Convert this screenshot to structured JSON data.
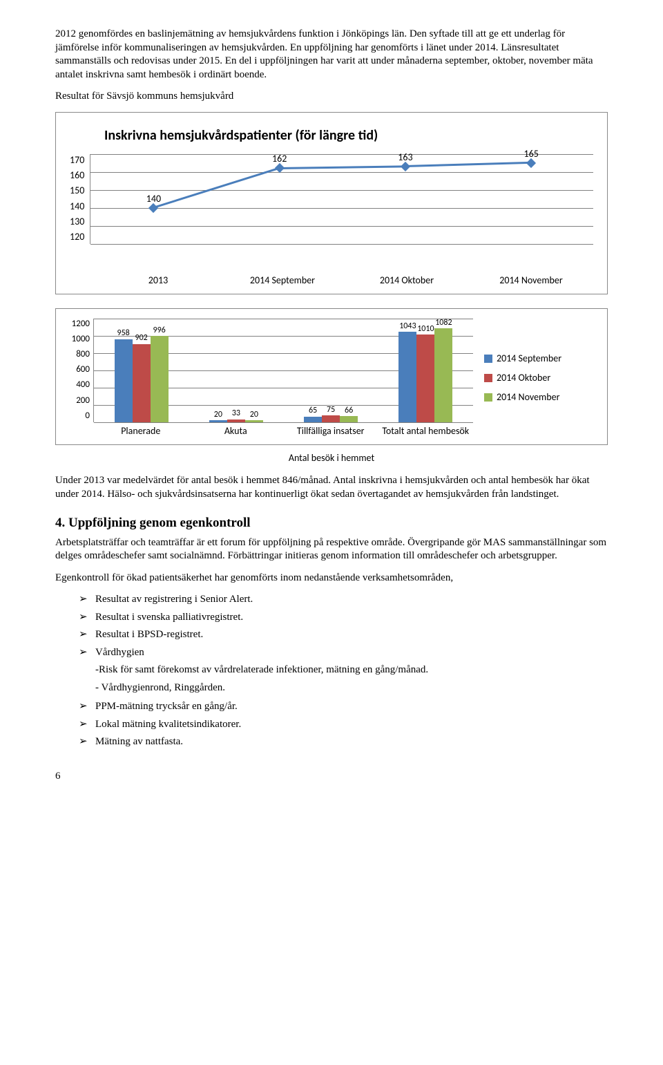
{
  "intro": {
    "p1": "2012 genomfördes en baslinjemätning av hemsjukvårdens funktion i Jönköpings län. Den syftade till att ge ett underlag för jämförelse inför kommunaliseringen av hemsjukvården. En uppföljning har genomförts i länet under 2014. Länsresultatet sammanställs och redovisas under 2015. En del i uppföljningen har varit att under månaderna september, oktober, november mäta antalet inskrivna samt hembesök i ordinärt boende.",
    "p2": "Resultat för Sävsjö kommuns hemsjukvård"
  },
  "line_chart": {
    "type": "line",
    "title": "Inskrivna hemsjukvårdspatienter   (för längre tid)",
    "categories": [
      "2013",
      "2014 September",
      "2014 Oktober",
      "2014 November"
    ],
    "values": [
      140,
      162,
      163,
      165
    ],
    "ylim": [
      120,
      170
    ],
    "ytick_step": 10,
    "line_color": "#4a7ebb",
    "grid_color": "#808080",
    "label_fontsize": 14,
    "title_fontsize": 20
  },
  "bar_chart": {
    "type": "bar",
    "categories": [
      "Planerade",
      "Akuta",
      "Tillfälliga insatser",
      "Totalt antal hembesök"
    ],
    "series": [
      {
        "name": "2014 September",
        "color": "#4a7ebb",
        "values": [
          958,
          20,
          65,
          1043
        ]
      },
      {
        "name": "2014 Oktober",
        "color": "#be4b48",
        "values": [
          902,
          33,
          75,
          1010
        ]
      },
      {
        "name": "2014 November",
        "color": "#98b954",
        "values": [
          996,
          20,
          66,
          1082
        ]
      }
    ],
    "ylim": [
      0,
      1200
    ],
    "ytick_step": 200,
    "grid_color": "#808080",
    "bar_label_overlap": {
      "3": "1043  1010  1082"
    },
    "caption": "Antal besök i hemmet"
  },
  "after_charts": {
    "p1": "Under 2013 var medelvärdet för antal besök i hemmet 846/månad. Antal inskrivna i hemsjukvården och antal hembesök har ökat under 2014. Hälso- och sjukvårdsinsatserna har kontinuerligt ökat sedan övertagandet av hemsjukvården från landstinget."
  },
  "section4": {
    "heading": "4. Uppföljning genom egenkontroll",
    "p1": "Arbetsplatsträffar och teamträffar är ett forum för uppföljning på respektive område. Övergripande gör MAS sammanställningar som delges områdeschefer samt socialnämnd. Förbättringar initieras genom information till områdeschefer och arbetsgrupper.",
    "p2": "Egenkontroll för ökad patientsäkerhet har genomförts inom nedanstående verksamhetsområden,",
    "items": [
      "Resultat av registrering i Senior Alert.",
      "Resultat i svenska palliativregistret.",
      "Resultat i BPSD-registret.",
      "Vårdhygien"
    ],
    "sub1": "-Risk för samt förekomst av vårdrelaterade infektioner, mätning en gång/månad.",
    "sub2": "- Vårdhygienrond, Ringgården.",
    "items2": [
      "PPM-mätning trycksår en gång/år.",
      "Lokal mätning kvalitetsindikatorer.",
      "Mätning av nattfasta."
    ]
  },
  "page_number": "6"
}
